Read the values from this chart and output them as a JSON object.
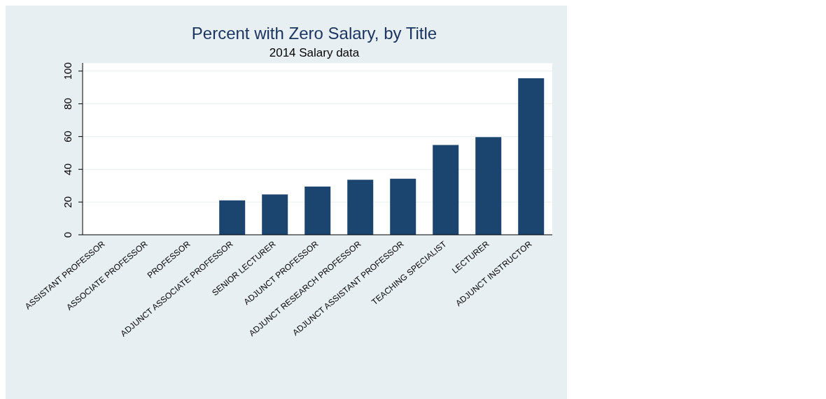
{
  "chart_data": {
    "type": "bar",
    "title": "Percent with Zero Salary, by Title",
    "subtitle": "2014 Salary data",
    "categories": [
      "ASSISTANT PROFESSOR",
      "ASSOCIATE PROFESSOR",
      "PROFESSOR",
      "ADJUNCT ASSOCIATE PROFESSOR",
      "SENIOR LECTURER",
      "ADJUNCT PROFESSOR",
      "ADJUNCT RESEARCH PROFESSOR",
      "ADJUNCT ASSISTANT PROFESSOR",
      "TEACHING SPECIALIST",
      "LECTURER",
      "ADJUNCT INSTRUCTOR"
    ],
    "values": [
      0,
      0,
      0,
      21,
      24.6,
      29.4,
      33.6,
      34.3,
      54.9,
      59.7,
      95.6
    ],
    "color": "#1b456e",
    "ylim": [
      0,
      105
    ],
    "yticks": [
      0,
      20,
      40,
      60,
      80,
      100
    ],
    "grid": "y"
  }
}
